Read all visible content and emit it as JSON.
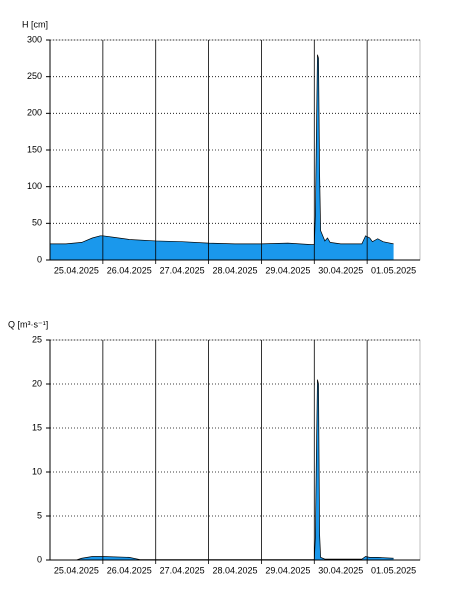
{
  "chart_data": [
    {
      "type": "area",
      "y_label": "H [cm]",
      "x": [
        0,
        0.3,
        0.6,
        0.8,
        0.95,
        1.0,
        1.2,
        1.5,
        2.0,
        2.5,
        3.0,
        3.5,
        4.0,
        4.5,
        4.95,
        5.0,
        5.02,
        5.04,
        5.06,
        5.08,
        5.1,
        5.12,
        5.2,
        5.25,
        5.3,
        5.5,
        5.9,
        5.97,
        6.05,
        6.1,
        6.2,
        6.3,
        6.5
      ],
      "series": [
        {
          "color": "#1a98ec",
          "values": [
            22,
            22,
            24,
            30,
            33,
            33,
            31,
            28,
            26,
            25,
            23,
            22,
            22,
            23,
            21,
            21,
            60,
            170,
            280,
            275,
            120,
            40,
            26,
            30,
            24,
            22,
            22,
            33,
            30,
            25,
            29,
            25,
            22
          ]
        }
      ],
      "xlim": [
        0,
        7
      ],
      "xticks": [
        {
          "value": 0,
          "label": "25.04.2025"
        },
        {
          "value": 1,
          "label": "26.04.2025"
        },
        {
          "value": 2,
          "label": "27.04.2025"
        },
        {
          "value": 3,
          "label": "28.04.2025"
        },
        {
          "value": 4,
          "label": "29.04.2025"
        },
        {
          "value": 5,
          "label": "30.04.2025"
        },
        {
          "value": 6,
          "label": "01.05.2025"
        }
      ],
      "ylim": [
        0,
        300
      ],
      "yticks": [
        0,
        50,
        100,
        150,
        200,
        250,
        300
      ],
      "grid": true
    },
    {
      "type": "area",
      "y_label": "Q [m³·s⁻¹]",
      "x": [
        0,
        0.5,
        0.6,
        0.8,
        1.0,
        1.5,
        1.7,
        2.0,
        3.0,
        4.0,
        5.0,
        5.02,
        5.04,
        5.06,
        5.08,
        5.1,
        5.12,
        5.2,
        5.9,
        5.97,
        6.05,
        6.2,
        6.5
      ],
      "series": [
        {
          "color": "#1a98ec",
          "values": [
            0,
            0,
            0.2,
            0.4,
            0.4,
            0.3,
            0.05,
            0.05,
            0.05,
            0.05,
            0.05,
            2.5,
            12,
            20.5,
            20,
            3,
            0.3,
            0.1,
            0.1,
            0.4,
            0.3,
            0.3,
            0.2
          ]
        }
      ],
      "xlim": [
        0,
        7
      ],
      "xticks": [
        {
          "value": 0,
          "label": "25.04.2025"
        },
        {
          "value": 1,
          "label": "26.04.2025"
        },
        {
          "value": 2,
          "label": "27.04.2025"
        },
        {
          "value": 3,
          "label": "28.04.2025"
        },
        {
          "value": 4,
          "label": "29.04.2025"
        },
        {
          "value": 5,
          "label": "30.04.2025"
        },
        {
          "value": 6,
          "label": "01.05.2025"
        }
      ],
      "ylim": [
        0,
        25
      ],
      "yticks": [
        0,
        5,
        10,
        15,
        20,
        25
      ],
      "grid": true
    }
  ]
}
